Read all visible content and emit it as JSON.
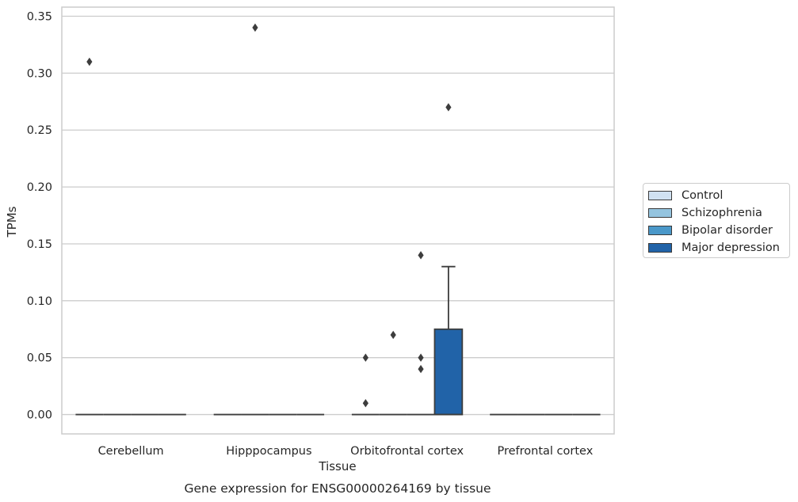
{
  "colors": {
    "Control": "#d0e1f2",
    "Schizophrenia": "#94c4df",
    "Bipolar disorder": "#4a98c9",
    "Major depression": "#2163a8",
    "grid": "#cccccc",
    "edge": "#3d3d3d"
  },
  "chart_data": {
    "type": "box",
    "title": "",
    "caption": "Gene expression for ENSG00000264169 by tissue",
    "xlabel": "Tissue",
    "ylabel": "TPMs",
    "ylim": [
      -0.017,
      0.358
    ],
    "yticks": [
      "0.00",
      "0.05",
      "0.10",
      "0.15",
      "0.20",
      "0.25",
      "0.30",
      "0.35"
    ],
    "ytick_values": [
      0,
      0.05,
      0.1,
      0.15,
      0.2,
      0.25,
      0.3,
      0.35
    ],
    "categories": [
      "Cerebellum",
      "Hipppocampus",
      "Orbitofrontal cortex",
      "Prefrontal cortex"
    ],
    "grid": "horizontal",
    "legend_position": "right",
    "series": [
      {
        "name": "Control",
        "boxes": [
          {
            "q1": 0,
            "median": 0,
            "q3": 0,
            "whisker_low": 0,
            "whisker_high": 0,
            "outliers": [
              0.31
            ]
          },
          {
            "q1": 0,
            "median": 0,
            "q3": 0,
            "whisker_low": 0,
            "whisker_high": 0,
            "outliers": []
          },
          {
            "q1": 0,
            "median": 0,
            "q3": 0,
            "whisker_low": 0,
            "whisker_high": 0,
            "outliers": [
              0.05,
              0.01
            ]
          },
          {
            "q1": 0,
            "median": 0,
            "q3": 0,
            "whisker_low": 0,
            "whisker_high": 0,
            "outliers": []
          }
        ]
      },
      {
        "name": "Schizophrenia",
        "boxes": [
          {
            "q1": 0,
            "median": 0,
            "q3": 0,
            "whisker_low": 0,
            "whisker_high": 0,
            "outliers": []
          },
          {
            "q1": 0,
            "median": 0,
            "q3": 0,
            "whisker_low": 0,
            "whisker_high": 0,
            "outliers": [
              0.34
            ]
          },
          {
            "q1": 0,
            "median": 0,
            "q3": 0,
            "whisker_low": 0,
            "whisker_high": 0,
            "outliers": [
              0.07
            ]
          },
          {
            "q1": 0,
            "median": 0,
            "q3": 0,
            "whisker_low": 0,
            "whisker_high": 0,
            "outliers": []
          }
        ]
      },
      {
        "name": "Bipolar disorder",
        "boxes": [
          {
            "q1": 0,
            "median": 0,
            "q3": 0,
            "whisker_low": 0,
            "whisker_high": 0,
            "outliers": []
          },
          {
            "q1": 0,
            "median": 0,
            "q3": 0,
            "whisker_low": 0,
            "whisker_high": 0,
            "outliers": []
          },
          {
            "q1": 0,
            "median": 0,
            "q3": 0,
            "whisker_low": 0,
            "whisker_high": 0,
            "outliers": [
              0.14,
              0.05,
              0.04
            ]
          },
          {
            "q1": 0,
            "median": 0,
            "q3": 0,
            "whisker_low": 0,
            "whisker_high": 0,
            "outliers": []
          }
        ]
      },
      {
        "name": "Major depression",
        "boxes": [
          {
            "q1": 0,
            "median": 0,
            "q3": 0,
            "whisker_low": 0,
            "whisker_high": 0,
            "outliers": []
          },
          {
            "q1": 0,
            "median": 0,
            "q3": 0,
            "whisker_low": 0,
            "whisker_high": 0,
            "outliers": []
          },
          {
            "q1": 0,
            "median": 0,
            "q3": 0.075,
            "whisker_low": 0,
            "whisker_high": 0.13,
            "outliers": [
              0.27
            ]
          },
          {
            "q1": 0,
            "median": 0,
            "q3": 0,
            "whisker_low": 0,
            "whisker_high": 0,
            "outliers": []
          }
        ]
      }
    ]
  }
}
